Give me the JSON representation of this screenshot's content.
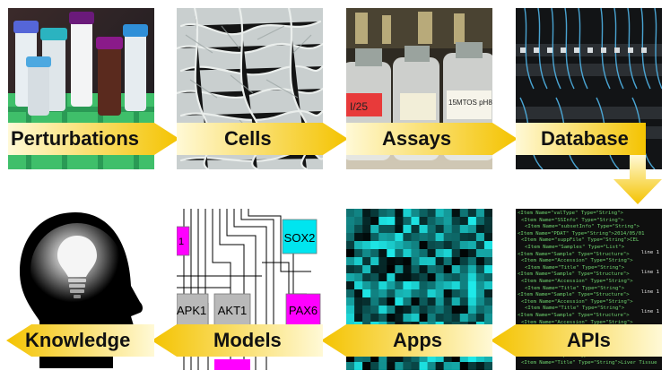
{
  "stages_top": [
    "Perturbations",
    "Cells",
    "Assays",
    "Database"
  ],
  "stages_bottom": [
    "APIs",
    "Apps",
    "Models",
    "Knowledge"
  ],
  "photo_panels": [
    {
      "name": "perturbations",
      "icon": "test-tubes-photo"
    },
    {
      "name": "cells",
      "icon": "cell-culture-micrograph"
    },
    {
      "name": "assays",
      "icon": "reagent-bottles-photo"
    },
    {
      "name": "database",
      "icon": "server-rack-photo"
    }
  ],
  "bottle_labels": [
    "I/25",
    "15MTOS pH8.8"
  ],
  "network_nodes": [
    "SOX2",
    "APK1",
    "AKT1",
    "PAX6"
  ],
  "xml_lines": [
    "<Item Name=\"valType\" Type=\"String\">",
    "<Item Name=\"SSInfo\" Type=\"String\">",
    "<Item Name=\"subsetInfo\" Type=\"String\">",
    "<Item Name=\"PDAT\" Type=\"String\">2014/05/01",
    "<Item Name=\"suppFile\" Type=\"String\">CEL",
    "<Item Name=\"Samples\" Type=\"List\">",
    "<Item Name=\"Sample\" Type=\"Structure\">",
    "<Item Name=\"Accession\" Type=\"String\">",
    "<Item Name=\"Title\" Type=\"String\">",
    "<Item Name=\"Sample\" Type=\"Structure\">",
    "<Item Name=\"Accession\" Type=\"String\">",
    "<Item Name=\"Title\" Type=\"String\">",
    "<Item Name=\"Sample\" Type=\"Structure\">",
    "<Item Name=\"Accession\" Type=\"String\">",
    "<Item Name=\"Title\" Type=\"String\">",
    "<Item Name=\"Sample\" Type=\"Structure\">",
    "<Item Name=\"Accession\" Type=\"String\">",
    "<Item Name=\"Title\" Type=\"String\">",
    "<Item Name=\"Sample\" Type=\"Structure\">",
    "<Item Name=\"Accession\" Type=\"String\">",
    "<Item Name=\"Title\" Type=\"String\">",
    "<Item Name=\"Sample\" Type=\"Structure\">",
    "<Item Name=\"Title\" Type=\"String\">Liver Tissue of"
  ],
  "xml_right_fragments": [
    "line 1",
    "line 1",
    "line 1",
    "line 1",
    "line 1"
  ],
  "colors": {
    "arrow_dark": "#f2c300",
    "arrow_light": "#fff7c8",
    "heatmap_cyan": "#18e0e0",
    "node_cyan": "#00e5ef",
    "node_magenta": "#ff00ff",
    "node_gray": "#b9b9b9"
  },
  "icons": [
    "head-lightbulb-icon",
    "arrow-right-icon",
    "arrow-down-icon",
    "arrow-left-icon"
  ]
}
